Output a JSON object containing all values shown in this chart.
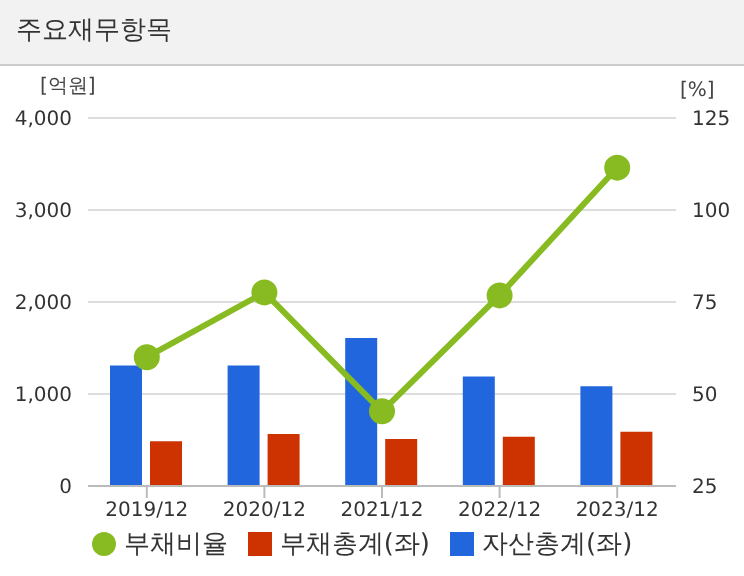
{
  "chart_data": {
    "type": "bar",
    "title": "주요재무항목",
    "ylabel": "[억원]",
    "y2label": "[%]",
    "categories": [
      "2019/12",
      "2020/12",
      "2021/12",
      "2022/12",
      "2023/12"
    ],
    "series": [
      {
        "name": "자산총계(좌)",
        "color": "#2266dd",
        "values": [
          1310,
          1310,
          1610,
          1190,
          1085
        ]
      },
      {
        "name": "부채총계(좌)",
        "color": "#cc3300",
        "values": [
          486,
          566,
          510,
          534,
          590
        ]
      },
      {
        "name": "부채비율",
        "type": "line",
        "axis": "y2",
        "color": "#88bb22",
        "marker": "circle",
        "values": [
          60,
          77.6,
          45.3,
          76.8,
          111.5
        ]
      }
    ],
    "ylim": [
      0,
      4000
    ],
    "yticks": [
      {
        "value": 0,
        "label": "0"
      },
      {
        "value": 1000,
        "label": "1,000"
      },
      {
        "value": 2000,
        "label": "2,000"
      },
      {
        "value": 3000,
        "label": "3,000"
      },
      {
        "value": 4000,
        "label": "4,000"
      }
    ],
    "y2lim": [
      25,
      125
    ],
    "y2ticks": [
      25,
      50,
      75,
      100,
      125
    ],
    "grid": "y",
    "legend": "bottom"
  }
}
